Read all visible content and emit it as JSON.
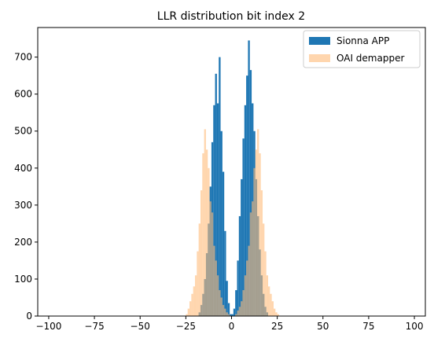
{
  "chart_data": {
    "type": "bar",
    "subtype": "histogram",
    "title": "LLR distribution bit index 2",
    "xlabel": "",
    "ylabel": "",
    "xlim": [
      -106,
      106
    ],
    "ylim": [
      0,
      780
    ],
    "x_ticks": [
      -100,
      -75,
      -50,
      -25,
      0,
      25,
      50,
      75,
      100
    ],
    "y_ticks": [
      0,
      100,
      200,
      300,
      400,
      500,
      600,
      700
    ],
    "legend_position": "top-right",
    "grid": false,
    "series": [
      {
        "name": "Sionna APP",
        "color": "#1f77b4",
        "alpha": 1.0,
        "bin_width": 1,
        "bins": [
          [
            -18,
            10
          ],
          [
            -17,
            30
          ],
          [
            -16,
            60
          ],
          [
            -15,
            100
          ],
          [
            -14,
            170
          ],
          [
            -13,
            250
          ],
          [
            -12,
            350
          ],
          [
            -11,
            470
          ],
          [
            -10,
            570
          ],
          [
            -9,
            655
          ],
          [
            -8,
            575
          ],
          [
            -7,
            700
          ],
          [
            -6,
            500
          ],
          [
            -5,
            390
          ],
          [
            -4,
            230
          ],
          [
            -3,
            95
          ],
          [
            -2,
            35
          ],
          [
            -1,
            5
          ],
          [
            0,
            5
          ],
          [
            1,
            20
          ],
          [
            2,
            70
          ],
          [
            3,
            150
          ],
          [
            4,
            270
          ],
          [
            5,
            370
          ],
          [
            6,
            480
          ],
          [
            7,
            570
          ],
          [
            8,
            650
          ],
          [
            9,
            745
          ],
          [
            10,
            665
          ],
          [
            11,
            575
          ],
          [
            12,
            500
          ],
          [
            13,
            370
          ],
          [
            14,
            270
          ],
          [
            15,
            180
          ],
          [
            16,
            110
          ],
          [
            17,
            60
          ],
          [
            18,
            25
          ],
          [
            19,
            10
          ]
        ]
      },
      {
        "name": "OAI demapper",
        "color": "#ffbb78",
        "alpha": 0.6,
        "bin_width": 1,
        "bins": [
          [
            -25,
            5
          ],
          [
            -24,
            20
          ],
          [
            -23,
            40
          ],
          [
            -22,
            60
          ],
          [
            -21,
            80
          ],
          [
            -20,
            110
          ],
          [
            -19,
            175
          ],
          [
            -18,
            250
          ],
          [
            -17,
            340
          ],
          [
            -16,
            440
          ],
          [
            -15,
            505
          ],
          [
            -14,
            450
          ],
          [
            -13,
            400
          ],
          [
            -12,
            310
          ],
          [
            -11,
            280
          ],
          [
            -10,
            190
          ],
          [
            -9,
            150
          ],
          [
            -8,
            110
          ],
          [
            -7,
            70
          ],
          [
            -6,
            50
          ],
          [
            -5,
            30
          ],
          [
            -4,
            20
          ],
          [
            -3,
            10
          ],
          [
            -2,
            5
          ],
          [
            2,
            5
          ],
          [
            3,
            15
          ],
          [
            4,
            25
          ],
          [
            5,
            40
          ],
          [
            6,
            70
          ],
          [
            7,
            110
          ],
          [
            8,
            150
          ],
          [
            9,
            190
          ],
          [
            10,
            280
          ],
          [
            11,
            310
          ],
          [
            12,
            400
          ],
          [
            13,
            450
          ],
          [
            14,
            505
          ],
          [
            15,
            440
          ],
          [
            16,
            340
          ],
          [
            17,
            250
          ],
          [
            18,
            175
          ],
          [
            19,
            110
          ],
          [
            20,
            80
          ],
          [
            21,
            60
          ],
          [
            22,
            40
          ],
          [
            23,
            20
          ],
          [
            24,
            10
          ],
          [
            25,
            5
          ]
        ]
      }
    ]
  }
}
